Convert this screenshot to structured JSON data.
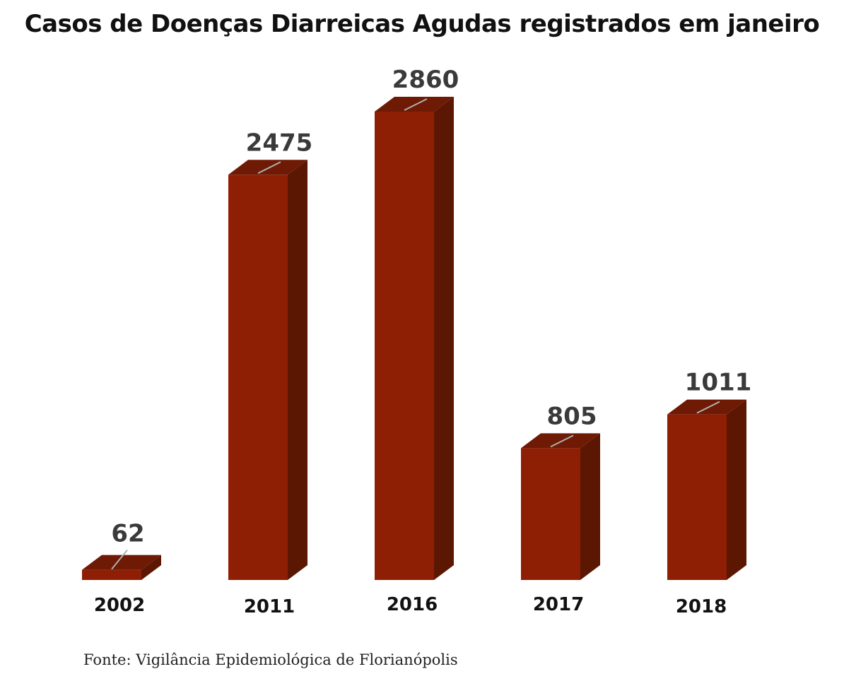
{
  "chart_data": {
    "type": "bar",
    "title": "Casos de Doenças Diarreicas Agudas registrados em janeiro",
    "categories": [
      "2002",
      "2011",
      "2016",
      "2017",
      "2018"
    ],
    "values": [
      62,
      2475,
      2860,
      805,
      1011
    ],
    "source": "Fonte: Vigilância Epidemiológica de Florianópolis",
    "xlabel": "",
    "ylabel": "",
    "ylim": [
      0,
      2860
    ],
    "grid": false,
    "legend": "none",
    "colors": {
      "bar_front": "#8e1f04",
      "bar_top": "#6e1a05",
      "bar_side": "#5c1702",
      "label_text": "#3a3a3a",
      "leader_line": "#b0b0b0",
      "category_text": "#111111"
    }
  }
}
